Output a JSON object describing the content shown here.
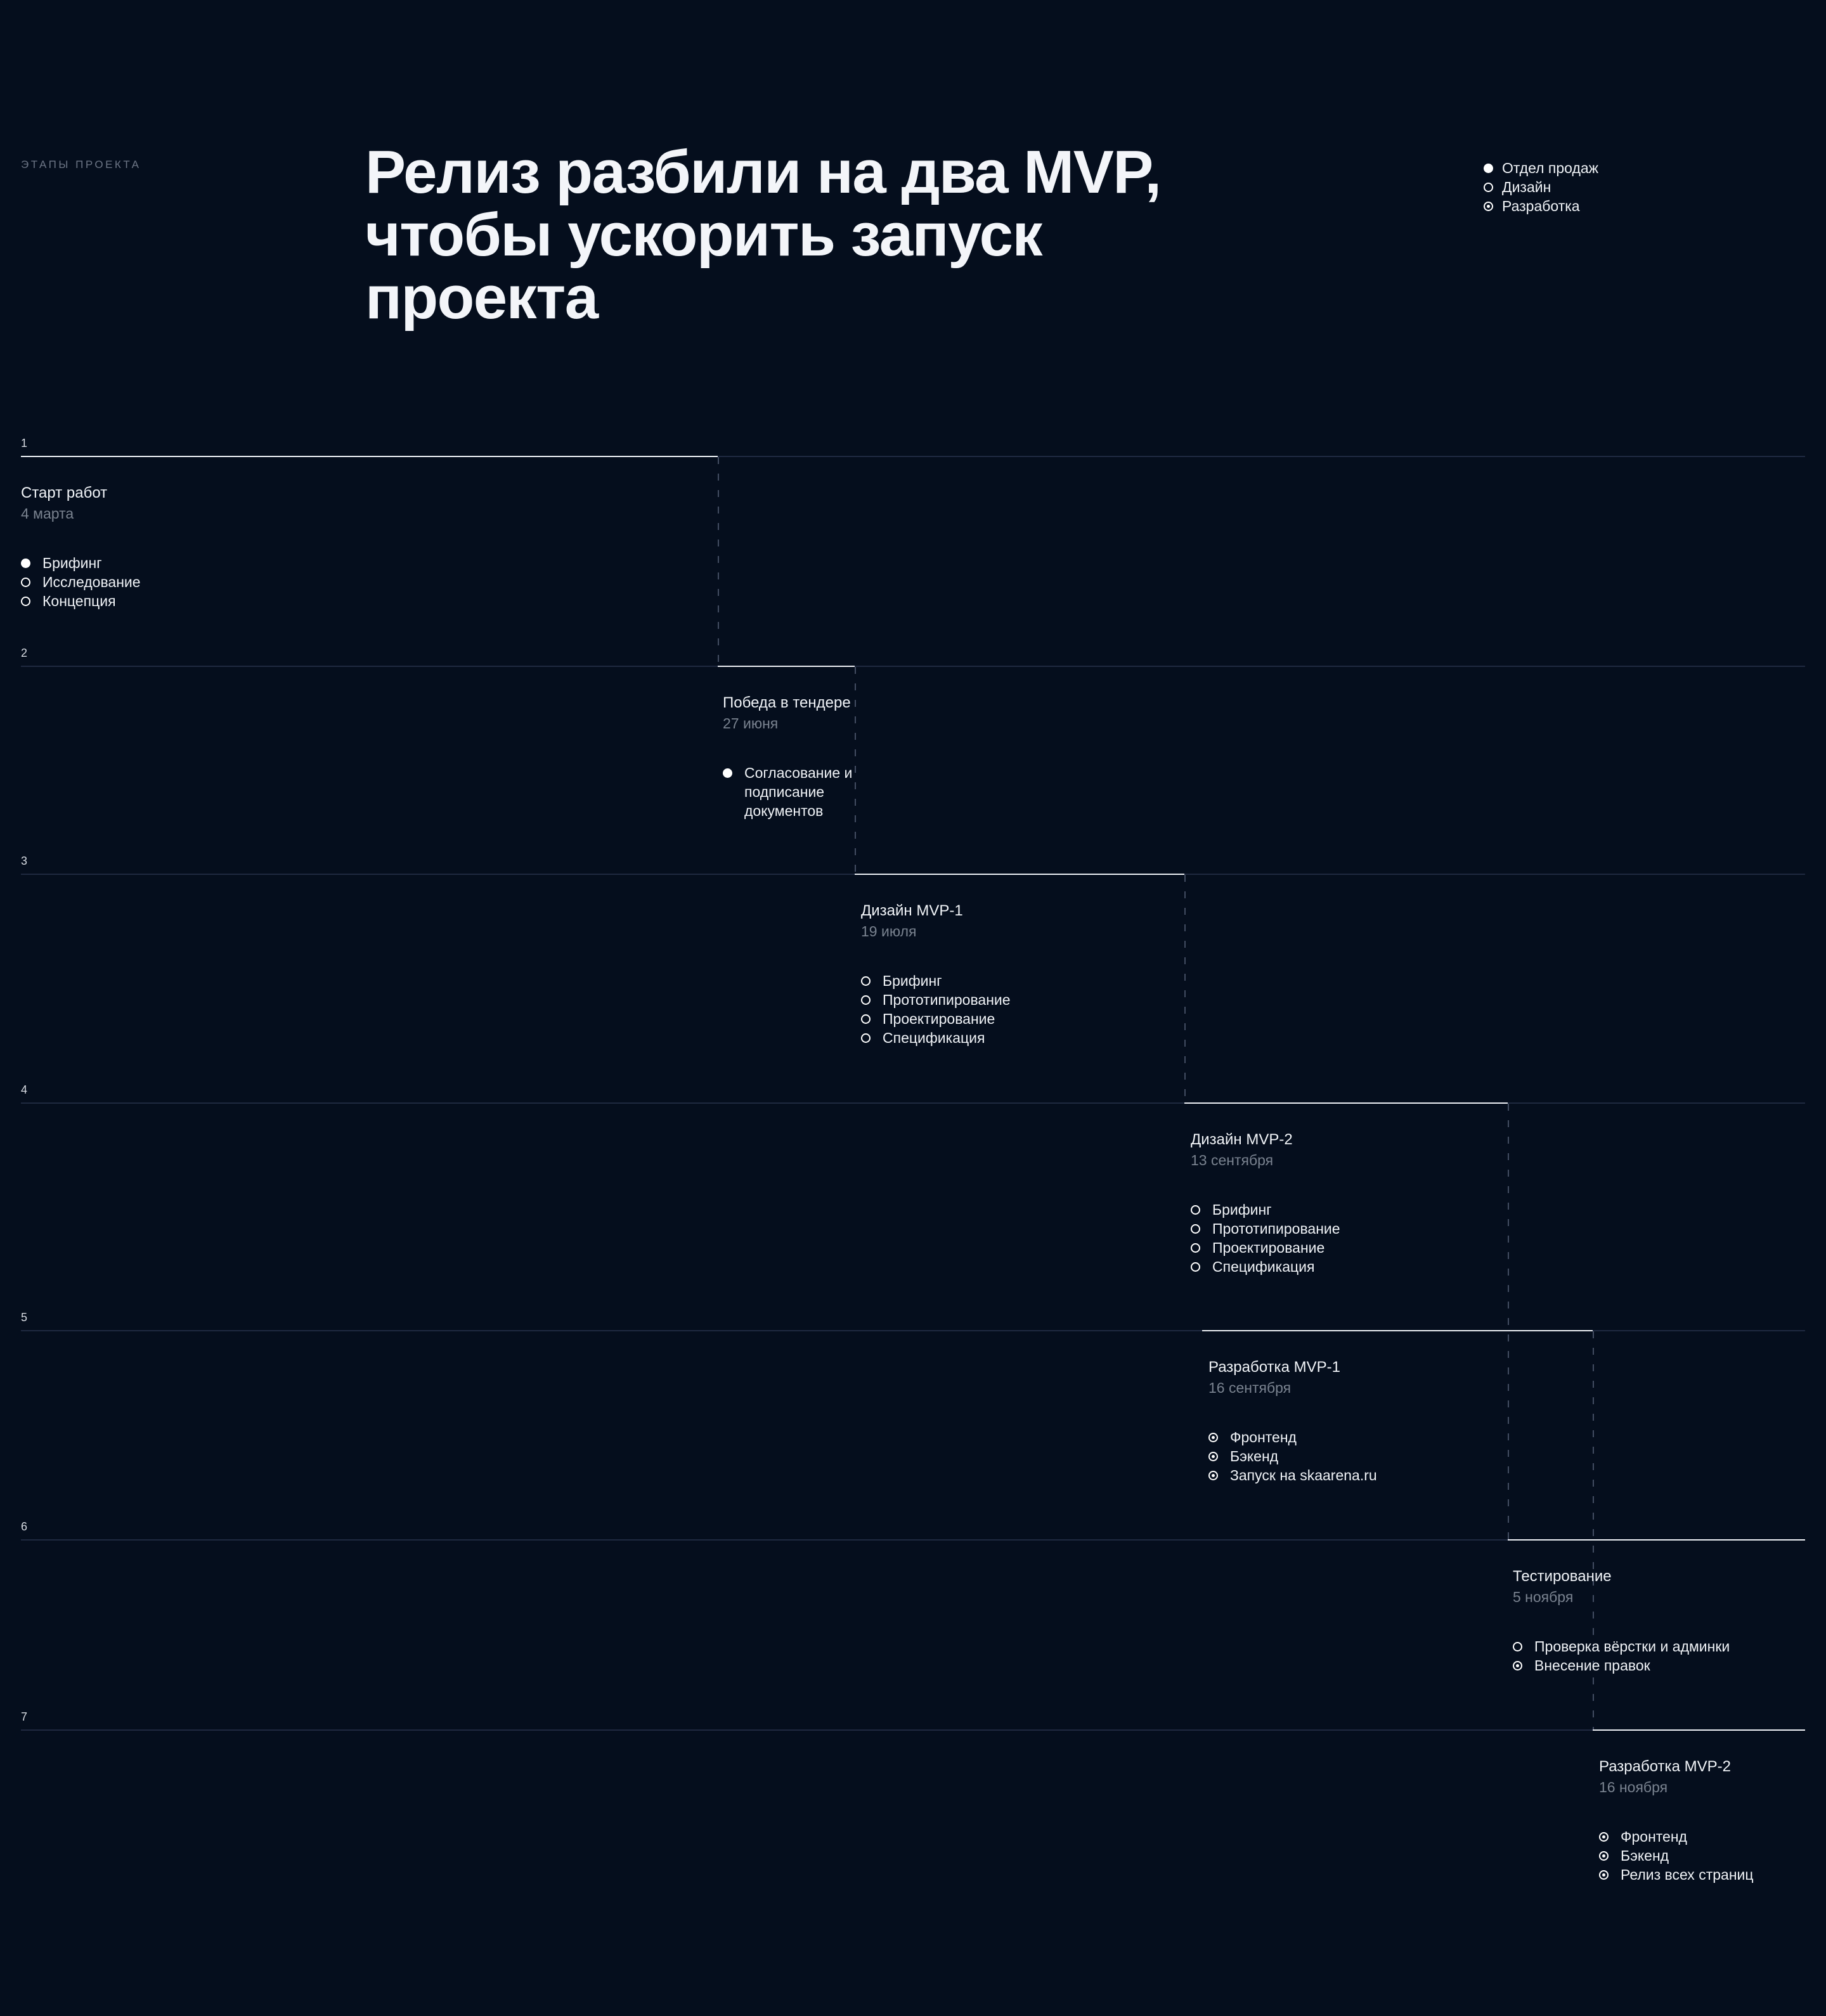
{
  "page": {
    "eyebrow": "ЭТАПЫ ПРОЕКТА",
    "title_lines": [
      "Релиз разбили на два MVP,",
      "чтобы ускорить запуск",
      "проекта"
    ]
  },
  "legend": {
    "items": [
      {
        "label": "Отдел продаж",
        "marker": "filled"
      },
      {
        "label": "Дизайн",
        "marker": "hollow"
      },
      {
        "label": "Разработка",
        "marker": "target"
      }
    ]
  },
  "stages": [
    {
      "number": "1",
      "title": "Старт работ",
      "date": "4 марта",
      "items": [
        {
          "label": "Брифинг",
          "marker": "filled"
        },
        {
          "label": "Исследование",
          "marker": "hollow"
        },
        {
          "label": "Концепция",
          "marker": "hollow"
        }
      ]
    },
    {
      "number": "2",
      "title": "Победа в тендере",
      "date": "27 июня",
      "items": [
        {
          "label": "Согласование и подписание документов",
          "marker": "filled"
        }
      ]
    },
    {
      "number": "3",
      "title": "Дизайн MVP-1",
      "date": "19 июля",
      "items": [
        {
          "label": "Брифинг",
          "marker": "hollow"
        },
        {
          "label": "Прототипирование",
          "marker": "hollow"
        },
        {
          "label": "Проектирование",
          "marker": "hollow"
        },
        {
          "label": "Спецификация",
          "marker": "hollow"
        }
      ]
    },
    {
      "number": "4",
      "title": "Дизайн MVP-2",
      "date": "13 сентября",
      "items": [
        {
          "label": "Брифинг",
          "marker": "hollow"
        },
        {
          "label": "Прототипирование",
          "marker": "hollow"
        },
        {
          "label": "Проектирование",
          "marker": "hollow"
        },
        {
          "label": "Спецификация",
          "marker": "hollow"
        }
      ]
    },
    {
      "number": "5",
      "title": "Разработка MVP-1",
      "date": "16 сентября",
      "items": [
        {
          "label": "Фронтенд",
          "marker": "target"
        },
        {
          "label": "Бэкенд",
          "marker": "target"
        },
        {
          "label": "Запуск на skaarena.ru",
          "marker": "target"
        }
      ]
    },
    {
      "number": "6",
      "title": "Тестирование",
      "date": "5 ноября",
      "items": [
        {
          "label": "Проверка вёрстки и админки",
          "marker": "hollow"
        },
        {
          "label": "Внесение правок",
          "marker": "target"
        }
      ]
    },
    {
      "number": "7",
      "title": "Разработка MVP-2",
      "date": "16 ноября",
      "items": [
        {
          "label": "Фронтенд",
          "marker": "target"
        },
        {
          "label": "Бэкенд",
          "marker": "target"
        },
        {
          "label": "Релиз всех страниц",
          "marker": "target"
        }
      ]
    }
  ],
  "colors": {
    "background": "#050e1d",
    "line_active": "#edf0f5",
    "line_faint": "#1f2940",
    "line_dashed": "#424c61",
    "text_primary": "#f0f3f7",
    "text_secondary": "#79828f"
  }
}
